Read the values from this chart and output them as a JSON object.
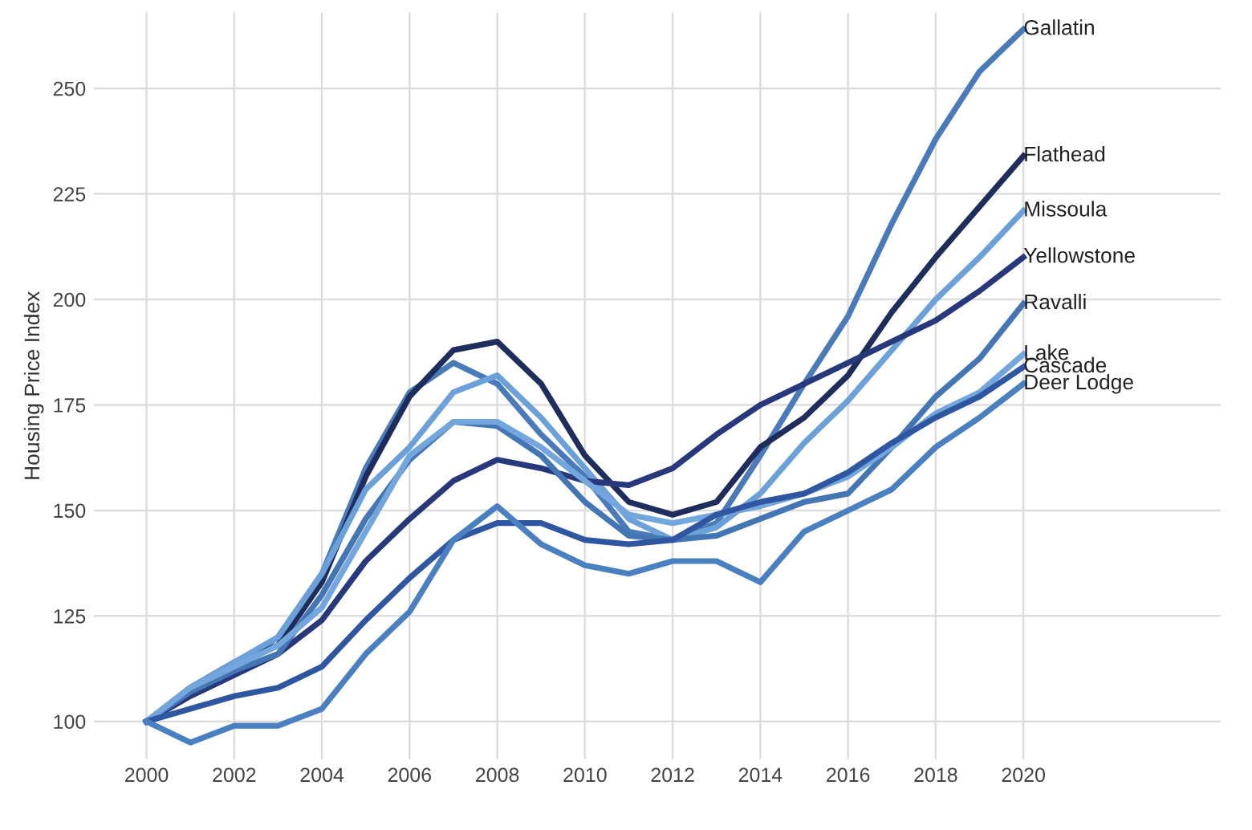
{
  "chart_data": {
    "type": "line",
    "ylabel": "Housing Price Index",
    "x": [
      2000,
      2001,
      2002,
      2003,
      2004,
      2005,
      2006,
      2007,
      2008,
      2009,
      2010,
      2011,
      2012,
      2013,
      2014,
      2015,
      2016,
      2017,
      2018,
      2019,
      2020
    ],
    "xlim": [
      1998.8,
      2024.5
    ],
    "xticks": [
      2000,
      2002,
      2004,
      2006,
      2008,
      2010,
      2012,
      2014,
      2016,
      2018,
      2020
    ],
    "ylim": [
      91,
      268
    ],
    "yticks": [
      100,
      125,
      150,
      175,
      200,
      225,
      250
    ],
    "grid": true,
    "legend": false,
    "marker": "none",
    "line_style": "solid",
    "series": [
      {
        "name": "Gallatin",
        "color": "#4a7ab8",
        "values": [
          100,
          107,
          113,
          120,
          135,
          160,
          178,
          185,
          180,
          168,
          158,
          145,
          143,
          147,
          163,
          180,
          196,
          218,
          238,
          254,
          264
        ]
      },
      {
        "name": "Flathead",
        "color": "#1f2d5c",
        "values": [
          100,
          108,
          114,
          118,
          133,
          158,
          177,
          188,
          190,
          180,
          163,
          152,
          149,
          152,
          165,
          172,
          182,
          197,
          210,
          222,
          234
        ]
      },
      {
        "name": "Missoula",
        "color": "#6ba0d8",
        "values": [
          100,
          108,
          114,
          120,
          135,
          155,
          165,
          178,
          182,
          172,
          160,
          148,
          143,
          146,
          154,
          166,
          176,
          188,
          200,
          210,
          221
        ]
      },
      {
        "name": "Yellowstone",
        "color": "#27397a",
        "values": [
          100,
          106,
          111,
          116,
          124,
          138,
          148,
          157,
          162,
          160,
          157,
          156,
          160,
          168,
          175,
          180,
          185,
          190,
          195,
          202,
          210
        ]
      },
      {
        "name": "Ravalli",
        "color": "#4576b4",
        "values": [
          100,
          107,
          112,
          116,
          130,
          148,
          162,
          171,
          170,
          163,
          152,
          144,
          143,
          144,
          148,
          152,
          154,
          165,
          177,
          186,
          199
        ]
      },
      {
        "name": "Lake",
        "color": "#73a6dc",
        "values": [
          100,
          108,
          113,
          118,
          127,
          145,
          163,
          171,
          171,
          165,
          157,
          149,
          147,
          149,
          151,
          154,
          158,
          165,
          173,
          178,
          187
        ]
      },
      {
        "name": "Cascade",
        "color": "#2f56a0",
        "values": [
          100,
          103,
          106,
          108,
          113,
          124,
          134,
          143,
          147,
          147,
          143,
          142,
          143,
          149,
          152,
          154,
          159,
          166,
          172,
          177,
          184
        ]
      },
      {
        "name": "Deer Lodge",
        "color": "#4a80c0",
        "values": [
          100,
          95,
          99,
          99,
          103,
          116,
          126,
          143,
          151,
          142,
          137,
          135,
          138,
          138,
          133,
          145,
          150,
          155,
          165,
          172,
          180
        ]
      }
    ]
  }
}
